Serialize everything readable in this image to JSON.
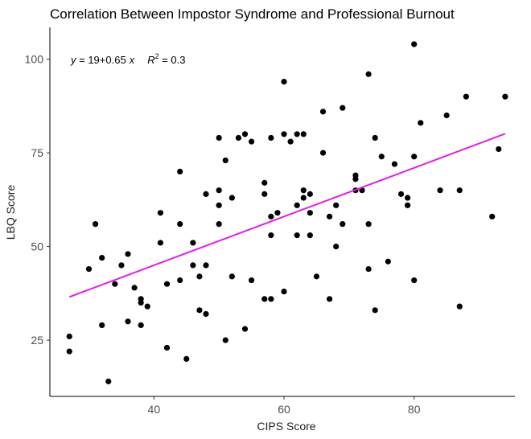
{
  "chart_data": {
    "type": "scatter",
    "title": "Correlation Between Impostor Syndrome and Professional Burnout",
    "xlabel": "CIPS Score",
    "ylabel": "LBQ Score",
    "xlim": [
      24,
      95.5
    ],
    "ylim": [
      10,
      108.5
    ],
    "x_ticks": [
      40,
      60,
      80
    ],
    "y_ticks": [
      25,
      50,
      75,
      100
    ],
    "grid": false,
    "annotation": {
      "lhs": "y",
      "equals": " = ",
      "intercept": "19",
      "plus": "+",
      "slope": "0.65",
      "var": "x",
      "r_symbol": "R",
      "r_exp": "2",
      "r_value": " = 0.3"
    },
    "regression": {
      "intercept": 19,
      "slope": 0.65,
      "x_range": [
        27,
        94
      ],
      "color": "#e020e0"
    },
    "point_color": "#000000",
    "points": [
      [
        27,
        22
      ],
      [
        27,
        26
      ],
      [
        30,
        44
      ],
      [
        31,
        56
      ],
      [
        32,
        29
      ],
      [
        32,
        47
      ],
      [
        33,
        14
      ],
      [
        34,
        40
      ],
      [
        35,
        45
      ],
      [
        36,
        48
      ],
      [
        36,
        30
      ],
      [
        37,
        39
      ],
      [
        38,
        36
      ],
      [
        38,
        35
      ],
      [
        38,
        29
      ],
      [
        39,
        34
      ],
      [
        41,
        51
      ],
      [
        41,
        59
      ],
      [
        42,
        23
      ],
      [
        42,
        40
      ],
      [
        44,
        70
      ],
      [
        44,
        56
      ],
      [
        44,
        41
      ],
      [
        45,
        20
      ],
      [
        46,
        51
      ],
      [
        46,
        45
      ],
      [
        47,
        42
      ],
      [
        47,
        33
      ],
      [
        48,
        64
      ],
      [
        48,
        45
      ],
      [
        48,
        32
      ],
      [
        50,
        79
      ],
      [
        50,
        65
      ],
      [
        50,
        61
      ],
      [
        50,
        56
      ],
      [
        51,
        73
      ],
      [
        51,
        25
      ],
      [
        52,
        63
      ],
      [
        52,
        42
      ],
      [
        53,
        79
      ],
      [
        54,
        80
      ],
      [
        54,
        28
      ],
      [
        55,
        78
      ],
      [
        55,
        41
      ],
      [
        57,
        67
      ],
      [
        57,
        64
      ],
      [
        57,
        36
      ],
      [
        58,
        79
      ],
      [
        58,
        58
      ],
      [
        58,
        53
      ],
      [
        58,
        36
      ],
      [
        59,
        59
      ],
      [
        60,
        94
      ],
      [
        60,
        80
      ],
      [
        60,
        38
      ],
      [
        61,
        78
      ],
      [
        62,
        80
      ],
      [
        62,
        61
      ],
      [
        62,
        53
      ],
      [
        63,
        80
      ],
      [
        63,
        65
      ],
      [
        63,
        63
      ],
      [
        64,
        64
      ],
      [
        64,
        59
      ],
      [
        64,
        53
      ],
      [
        65,
        42
      ],
      [
        66,
        86
      ],
      [
        66,
        75
      ],
      [
        67,
        58
      ],
      [
        67,
        36
      ],
      [
        68,
        61
      ],
      [
        68,
        50
      ],
      [
        69,
        87
      ],
      [
        69,
        56
      ],
      [
        71,
        69
      ],
      [
        71,
        68
      ],
      [
        71,
        65
      ],
      [
        72,
        65
      ],
      [
        73,
        96
      ],
      [
        73,
        56
      ],
      [
        73,
        44
      ],
      [
        74,
        79
      ],
      [
        74,
        33
      ],
      [
        75,
        74
      ],
      [
        76,
        46
      ],
      [
        77,
        72
      ],
      [
        78,
        64
      ],
      [
        79,
        63
      ],
      [
        79,
        61
      ],
      [
        80,
        104
      ],
      [
        80,
        74
      ],
      [
        80,
        41
      ],
      [
        81,
        83
      ],
      [
        84,
        65
      ],
      [
        85,
        85
      ],
      [
        87,
        65
      ],
      [
        87,
        34
      ],
      [
        88,
        90
      ],
      [
        92,
        58
      ],
      [
        93,
        76
      ],
      [
        94,
        90
      ]
    ]
  }
}
